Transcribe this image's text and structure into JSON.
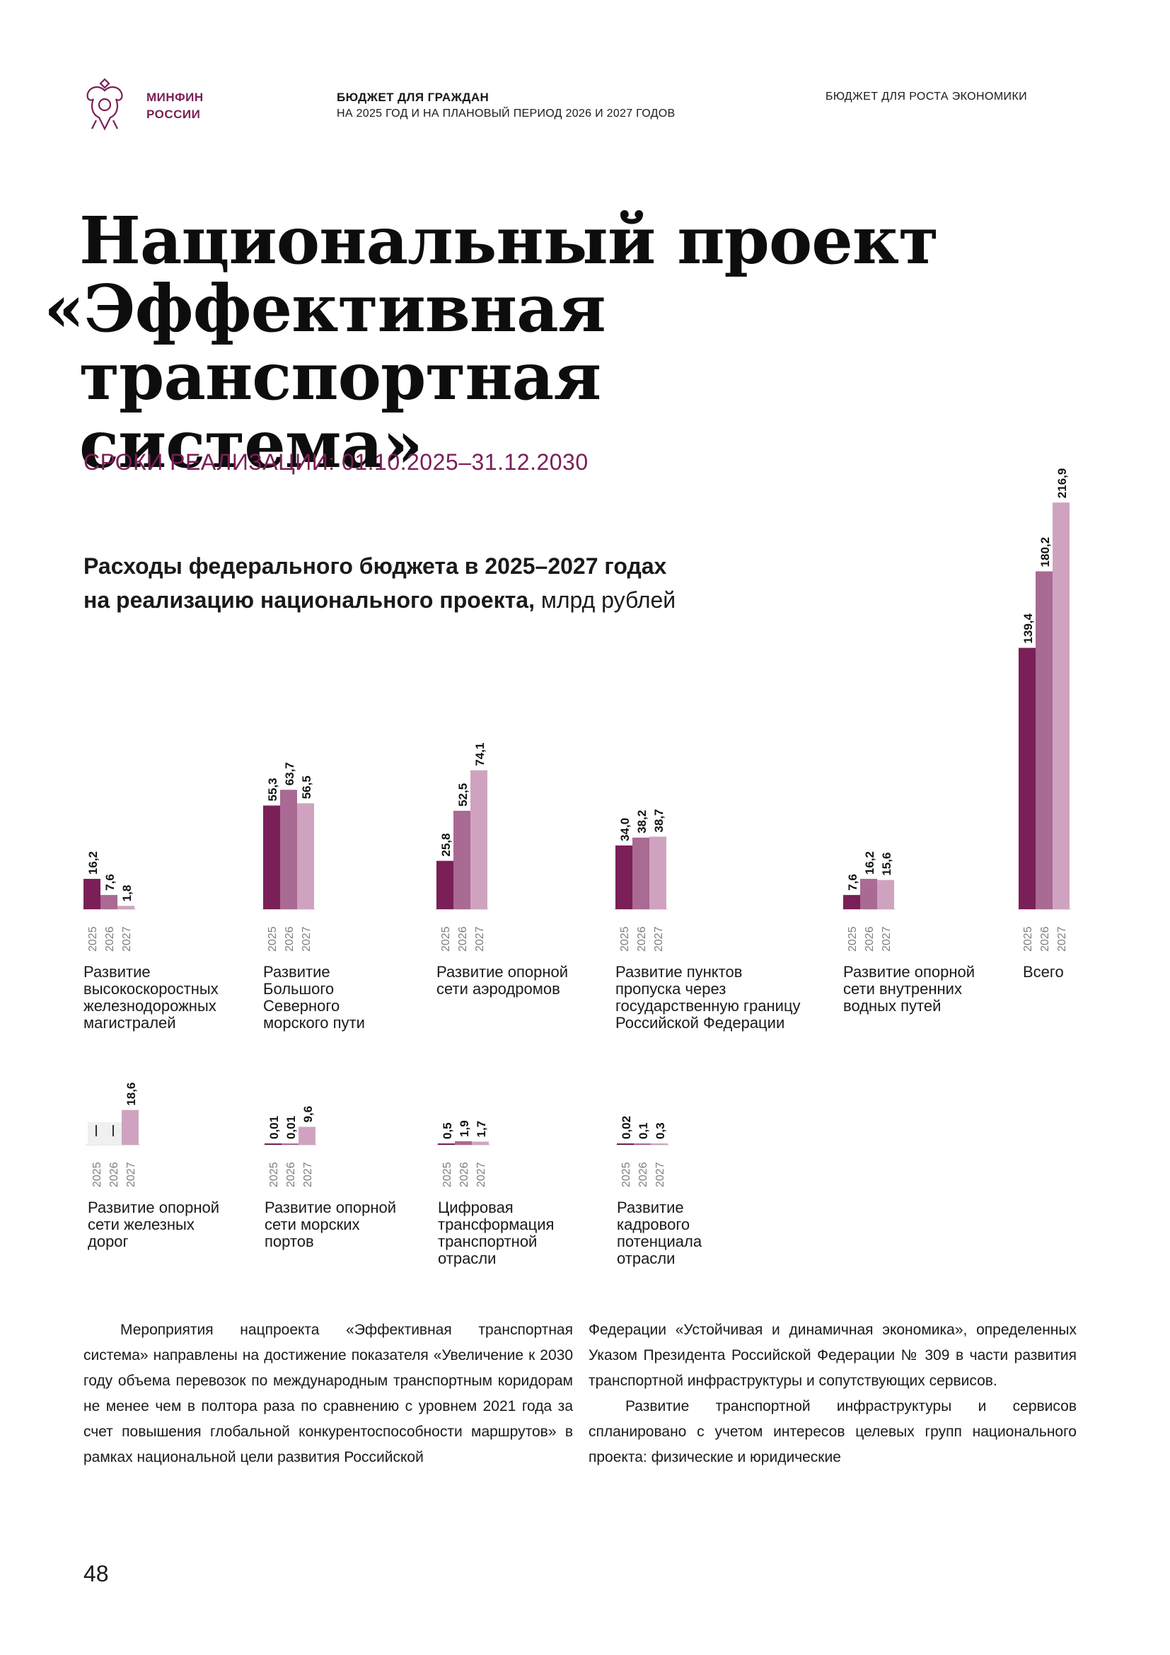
{
  "header": {
    "org_line1": "МИНФИН",
    "org_line2": "РОССИИ",
    "doc_title": "БЮДЖЕТ ДЛЯ ГРАЖДАН",
    "doc_subtitle": "НА 2025 ГОД И НА ПЛАНОВЫЙ ПЕРИОД 2026 И 2027 ГОДОВ",
    "section": "БЮДЖЕТ ДЛЯ РОСТА ЭКОНОМИКИ"
  },
  "title": {
    "line1": "Национальный проект",
    "line2": "«Эффективная",
    "line3": "транспортная система»"
  },
  "period": "СРОКИ РЕАЛИЗАЦИИ: 01.10.2025–31.12.2030",
  "chart_heading": {
    "line1": "Расходы федерального бюджета в 2025–2027 годах",
    "line2_bold": "на реализацию национального проекта,",
    "unit": " млрд рублей"
  },
  "chart_data": {
    "type": "bar",
    "years": [
      "2025",
      "2026",
      "2027"
    ],
    "colors": [
      "#7a1f57",
      "#a96a93",
      "#cfa3c0"
    ],
    "groups": [
      {
        "category": "Развитие высокоскоростных железнодорожных магистралей",
        "values": [
          16.2,
          7.6,
          1.8
        ],
        "labels": [
          "16,2",
          "7,6",
          "1,8"
        ]
      },
      {
        "category": "Развитие Большого Северного морского пути",
        "values": [
          55.3,
          63.7,
          56.5
        ],
        "labels": [
          "55,3",
          "63,7",
          "56,5"
        ]
      },
      {
        "category": "Развитие опорной сети аэродромов",
        "values": [
          25.8,
          52.5,
          74.1
        ],
        "labels": [
          "25,8",
          "52,5",
          "74,1"
        ]
      },
      {
        "category": "Развитие пунктов пропуска через государственную границу Российской Федерации",
        "values": [
          34.0,
          38.2,
          38.7
        ],
        "labels": [
          "34,0",
          "38,2",
          "38,7"
        ]
      },
      {
        "category": "Развитие опорной сети внутренних водных путей",
        "values": [
          7.6,
          16.2,
          15.6
        ],
        "labels": [
          "7,6",
          "16,2",
          "15,6"
        ]
      },
      {
        "category": "Всего",
        "values": [
          139.4,
          180.2,
          216.9
        ],
        "labels": [
          "139,4",
          "180,2",
          "216,9"
        ]
      },
      {
        "category": "Развитие опорной сети железных дорог",
        "values": [
          null,
          null,
          18.6
        ],
        "labels": [
          "–",
          "–",
          "18,6"
        ]
      },
      {
        "category": "Развитие опорной сети морских портов",
        "values": [
          0.01,
          0.01,
          9.6
        ],
        "labels": [
          "0,01",
          "0,01",
          "9,6"
        ]
      },
      {
        "category": "Цифровая трансформация транспортной отрасли",
        "values": [
          0.5,
          1.9,
          1.7
        ],
        "labels": [
          "0,5",
          "1,9",
          "1,7"
        ]
      },
      {
        "category": "Развитие кадрового потенциала отрасли",
        "values": [
          0.02,
          0.1,
          0.3
        ],
        "labels": [
          "0,02",
          "0,1",
          "0,3"
        ]
      }
    ]
  },
  "body": {
    "col1": "Мероприятия нацпроекта «Эффективная транспортная система» направлены на достижение показателя «Увеличение к 2030 году объема перевозок по международным транспортным коридорам не менее чем в полтора раза по сравнению с уровнем 2021 года за счет повышения глобальной конкурентоспособности маршрутов» в рамках национальной цели развития Российской",
    "col2_p1": "Федерации «Устойчивая и динамичная экономика», определенных Указом Президента Российской Федерации № 309 в части развития транспортной инфраструктуры и сопутствующих сервисов.",
    "col2_p2": "Развитие транспортной инфраструктуры и сервисов спланировано с учетом интересов целевых групп национального проекта: физические и юридические"
  },
  "page_number": "48"
}
